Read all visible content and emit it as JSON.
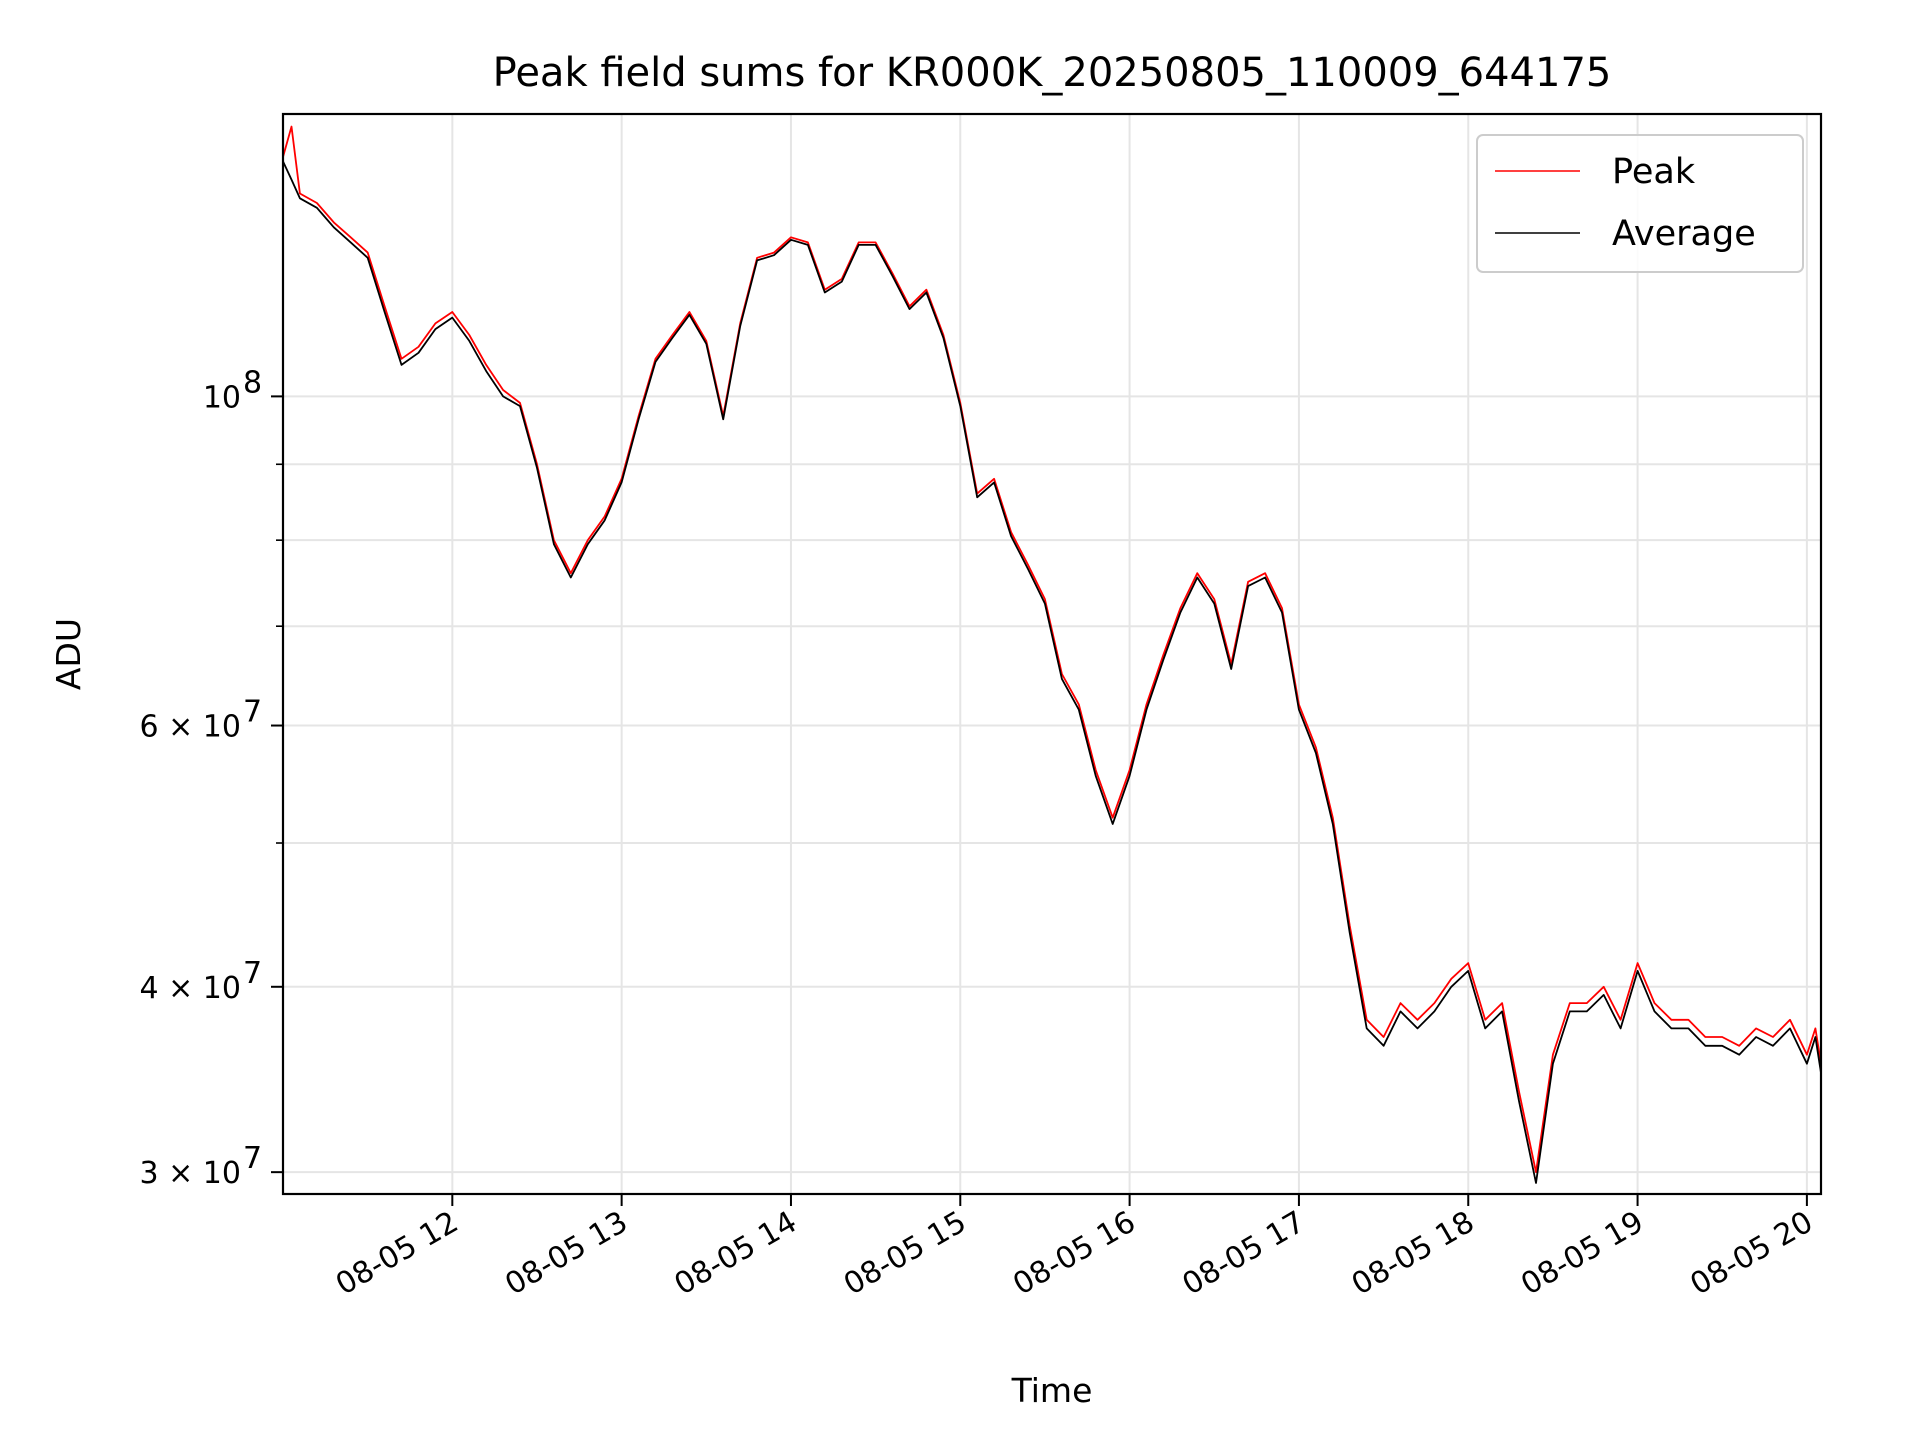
{
  "chart_data": {
    "type": "line",
    "title": "Peak field sums for KR000K_20250805_110009_644175",
    "xlabel": "Time",
    "ylabel": "ADU",
    "x_range": [
      "2025-08-05 11:00",
      "2025-08-05 20:05"
    ],
    "ylim": [
      29000000,
      155000000
    ],
    "yscale": "log",
    "grid": true,
    "legend_position": "top-right",
    "x_tick_labels": [
      "08-05 12",
      "08-05 13",
      "08-05 14",
      "08-05 15",
      "08-05 16",
      "08-05 17",
      "08-05 18",
      "08-05 19",
      "08-05 20"
    ],
    "x_tick_times": [
      "2025-08-05 12:00",
      "2025-08-05 13:00",
      "2025-08-05 14:00",
      "2025-08-05 15:00",
      "2025-08-05 16:00",
      "2025-08-05 17:00",
      "2025-08-05 18:00",
      "2025-08-05 19:00",
      "2025-08-05 20:00"
    ],
    "y_ticks": [
      {
        "value": 100000000,
        "base": "10",
        "exp": "8"
      },
      {
        "value": 60000000,
        "base": "6 × 10",
        "exp": "7"
      },
      {
        "value": 40000000,
        "base": "4 × 10",
        "exp": "7"
      },
      {
        "value": 30000000,
        "base": "3 × 10",
        "exp": "7"
      }
    ],
    "y_minor_ticks": [
      50000000,
      70000000,
      80000000,
      90000000
    ],
    "x": [
      "2025-08-05 11:00",
      "2025-08-05 11:03",
      "2025-08-05 11:06",
      "2025-08-05 11:12",
      "2025-08-05 11:15",
      "2025-08-05 11:18",
      "2025-08-05 11:24",
      "2025-08-05 11:30",
      "2025-08-05 11:36",
      "2025-08-05 11:42",
      "2025-08-05 11:48",
      "2025-08-05 11:54",
      "2025-08-05 12:00",
      "2025-08-05 12:06",
      "2025-08-05 12:12",
      "2025-08-05 12:18",
      "2025-08-05 12:24",
      "2025-08-05 12:30",
      "2025-08-05 12:36",
      "2025-08-05 12:42",
      "2025-08-05 12:48",
      "2025-08-05 12:54",
      "2025-08-05 13:00",
      "2025-08-05 13:06",
      "2025-08-05 13:12",
      "2025-08-05 13:18",
      "2025-08-05 13:24",
      "2025-08-05 13:30",
      "2025-08-05 13:36",
      "2025-08-05 13:42",
      "2025-08-05 13:48",
      "2025-08-05 13:54",
      "2025-08-05 14:00",
      "2025-08-05 14:06",
      "2025-08-05 14:12",
      "2025-08-05 14:18",
      "2025-08-05 14:24",
      "2025-08-05 14:30",
      "2025-08-05 14:36",
      "2025-08-05 14:42",
      "2025-08-05 14:48",
      "2025-08-05 14:54",
      "2025-08-05 15:00",
      "2025-08-05 15:06",
      "2025-08-05 15:12",
      "2025-08-05 15:18",
      "2025-08-05 15:24",
      "2025-08-05 15:30",
      "2025-08-05 15:36",
      "2025-08-05 15:42",
      "2025-08-05 15:48",
      "2025-08-05 15:54",
      "2025-08-05 16:00",
      "2025-08-05 16:06",
      "2025-08-05 16:12",
      "2025-08-05 16:18",
      "2025-08-05 16:24",
      "2025-08-05 16:30",
      "2025-08-05 16:36",
      "2025-08-05 16:42",
      "2025-08-05 16:48",
      "2025-08-05 16:54",
      "2025-08-05 17:00",
      "2025-08-05 17:06",
      "2025-08-05 17:12",
      "2025-08-05 17:18",
      "2025-08-05 17:24",
      "2025-08-05 17:30",
      "2025-08-05 17:36",
      "2025-08-05 17:42",
      "2025-08-05 17:48",
      "2025-08-05 17:54",
      "2025-08-05 18:00",
      "2025-08-05 18:06",
      "2025-08-05 18:12",
      "2025-08-05 18:18",
      "2025-08-05 18:24",
      "2025-08-05 18:30",
      "2025-08-05 18:36",
      "2025-08-05 18:42",
      "2025-08-05 18:48",
      "2025-08-05 18:54",
      "2025-08-05 19:00",
      "2025-08-05 19:06",
      "2025-08-05 19:12",
      "2025-08-05 19:18",
      "2025-08-05 19:24",
      "2025-08-05 19:30",
      "2025-08-05 19:36",
      "2025-08-05 19:42",
      "2025-08-05 19:48",
      "2025-08-05 19:54",
      "2025-08-05 20:00",
      "2025-08-05 20:03",
      "2025-08-05 20:05"
    ],
    "series": [
      {
        "name": "Peak",
        "color": "#ff0000",
        "values": [
          145000000,
          152000000,
          137000000,
          135000000,
          133000000,
          131000000,
          128000000,
          125000000,
          115000000,
          106000000,
          108000000,
          112000000,
          114000000,
          110000000,
          105000000,
          101000000,
          99000000,
          90000000,
          80000000,
          76000000,
          80000000,
          83000000,
          88000000,
          97000000,
          106000000,
          110000000,
          114000000,
          109000000,
          97000000,
          112000000,
          124000000,
          125000000,
          128000000,
          127000000,
          118000000,
          120000000,
          127000000,
          127000000,
          121000000,
          115000000,
          118000000,
          110000000,
          99000000,
          86000000,
          88000000,
          81000000,
          77000000,
          73000000,
          65000000,
          62000000,
          56000000,
          52000000,
          56000000,
          62000000,
          67000000,
          72000000,
          76000000,
          73000000,
          66000000,
          75000000,
          76000000,
          72000000,
          62000000,
          58000000,
          52000000,
          44000000,
          38000000,
          37000000,
          39000000,
          38000000,
          39000000,
          40500000,
          41500000,
          38000000,
          39000000,
          34000000,
          30000000,
          36000000,
          39000000,
          39000000,
          40000000,
          38000000,
          41500000,
          39000000,
          38000000,
          38000000,
          37000000,
          37000000,
          36500000,
          37500000,
          37000000,
          38000000,
          36000000,
          37500000,
          35500000
        ],
        "note": ""
      },
      {
        "name": "Average",
        "color": "#000000",
        "values": [
          144000000,
          140000000,
          136000000,
          134000000,
          132000000,
          130000000,
          127000000,
          124000000,
          114000000,
          105000000,
          107000000,
          111000000,
          113000000,
          109000000,
          104000000,
          100000000,
          98500000,
          89500000,
          79500000,
          75500000,
          79500000,
          82500000,
          87500000,
          96500000,
          105500000,
          109500000,
          113500000,
          108500000,
          96500000,
          111500000,
          123500000,
          124500000,
          127500000,
          126500000,
          117500000,
          119500000,
          126500000,
          126500000,
          120500000,
          114500000,
          117500000,
          109500000,
          98500000,
          85500000,
          87500000,
          80500000,
          76500000,
          72500000,
          64500000,
          61500000,
          55500000,
          51500000,
          55500000,
          61500000,
          66500000,
          71500000,
          75500000,
          72500000,
          65500000,
          74500000,
          75500000,
          71500000,
          61500000,
          57500000,
          51500000,
          43500000,
          37500000,
          36500000,
          38500000,
          37500000,
          38500000,
          40000000,
          41000000,
          37500000,
          38500000,
          33500000,
          29500000,
          35500000,
          38500000,
          38500000,
          39500000,
          37500000,
          41000000,
          38500000,
          37500000,
          37500000,
          36500000,
          36500000,
          36000000,
          37000000,
          36500000,
          37500000,
          35500000,
          37000000,
          35000000
        ]
      }
    ]
  }
}
